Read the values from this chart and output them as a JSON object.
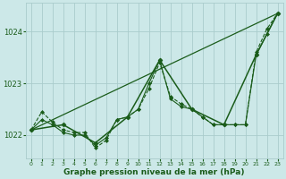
{
  "bg_color": "#cce8e8",
  "grid_color": "#aacccc",
  "line_color": "#1a5c1a",
  "xlabel": "Graphe pression niveau de la mer (hPa)",
  "xlim": [
    -0.5,
    23.5
  ],
  "ylim": [
    1021.55,
    1024.55
  ],
  "yticks": [
    1022,
    1023,
    1024
  ],
  "xticks": [
    0,
    1,
    2,
    3,
    4,
    5,
    6,
    7,
    8,
    9,
    10,
    11,
    12,
    13,
    14,
    15,
    16,
    17,
    18,
    19,
    20,
    21,
    22,
    23
  ],
  "series": [
    {
      "x": [
        0,
        23
      ],
      "y": [
        1022.1,
        1024.35
      ],
      "style": "-",
      "marker": null,
      "markersize": 0,
      "linewidth": 0.9
    },
    {
      "x": [
        0,
        1,
        2,
        3,
        4,
        5,
        6,
        7,
        8,
        9,
        10,
        11,
        12,
        13,
        14,
        15,
        16,
        17,
        18,
        19,
        20,
        21,
        22,
        23
      ],
      "y": [
        1022.1,
        1022.45,
        1022.25,
        1022.1,
        1022.05,
        1022.05,
        1021.75,
        1021.9,
        1022.3,
        1022.35,
        1022.5,
        1022.9,
        1023.4,
        1022.75,
        1022.6,
        1022.5,
        1022.35,
        1022.2,
        1022.2,
        1022.2,
        1022.2,
        1023.6,
        1024.05,
        1024.35
      ],
      "style": "--",
      "marker": "D",
      "markersize": 2.0,
      "linewidth": 0.8
    },
    {
      "x": [
        0,
        1,
        2,
        3,
        4,
        5,
        6,
        7,
        8,
        9,
        10,
        11,
        12,
        13,
        14,
        15,
        16,
        17,
        18,
        19,
        20,
        21,
        22,
        23
      ],
      "y": [
        1022.1,
        1022.3,
        1022.2,
        1022.05,
        1022.0,
        1022.0,
        1021.8,
        1021.95,
        1022.3,
        1022.35,
        1022.5,
        1023.0,
        1023.45,
        1022.7,
        1022.55,
        1022.5,
        1022.35,
        1022.2,
        1022.2,
        1022.2,
        1022.2,
        1023.55,
        1023.95,
        1024.35
      ],
      "style": "-",
      "marker": "D",
      "markersize": 2.0,
      "linewidth": 0.8
    },
    {
      "x": [
        0,
        3,
        6,
        9,
        12,
        15,
        18,
        21,
        23
      ],
      "y": [
        1022.1,
        1022.2,
        1021.85,
        1022.35,
        1023.45,
        1022.5,
        1022.2,
        1023.55,
        1024.35
      ],
      "style": "-",
      "marker": "D",
      "markersize": 2.5,
      "linewidth": 1.1
    }
  ]
}
